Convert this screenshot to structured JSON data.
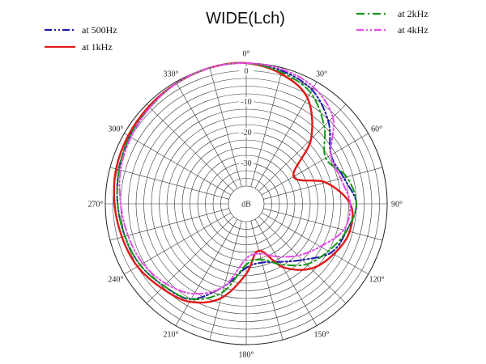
{
  "chart_data": {
    "type": "polar-line",
    "title": "WIDE(Lch)",
    "radial_unit_label": "dB",
    "radial_range": [
      -40,
      0
    ],
    "radial_tick_labels": [
      "0",
      "-10",
      "-20",
      "-30"
    ],
    "angle_tick_labels": [
      "0°",
      "30°",
      "60°",
      "90°",
      "120°",
      "150°",
      "180°",
      "210°",
      "240°",
      "270°",
      "300°",
      "330°"
    ],
    "angles_deg": [
      0,
      15,
      30,
      45,
      60,
      75,
      90,
      105,
      120,
      135,
      150,
      165,
      180,
      195,
      210,
      225,
      240,
      255,
      270,
      285,
      300,
      315,
      330,
      345
    ],
    "series": [
      {
        "name": "at 500Hz",
        "color": "#1a1aa8",
        "dash": "dashdotdot",
        "values": [
          0,
          -1,
          -3,
          -8,
          -14,
          -13,
          -10,
          -12,
          -14,
          -20,
          -24,
          -26,
          -25,
          -18,
          -10,
          -8,
          -6,
          -5,
          -4,
          -3,
          -2,
          -1,
          -0.5,
          0
        ]
      },
      {
        "name": "at 1kHz",
        "color": "#e01919",
        "dash": "solid",
        "values": [
          0,
          -2,
          -6,
          -16,
          -28,
          -19,
          -12,
          -11,
          -13,
          -16,
          -22,
          -30,
          -23,
          -14,
          -9,
          -7,
          -5,
          -4,
          -3,
          -2,
          -1.5,
          -1,
          -0.5,
          0
        ]
      },
      {
        "name": "at 2kHz",
        "color": "#169616",
        "dash": "dashdot",
        "values": [
          0,
          -1.5,
          -4,
          -10,
          -16,
          -12,
          -10,
          -12,
          -15,
          -18,
          -23,
          -27,
          -26,
          -16,
          -10,
          -8,
          -6,
          -5,
          -4,
          -3,
          -2,
          -1.5,
          -0.5,
          0
        ]
      },
      {
        "name": "at 4kHz",
        "color": "#e64be6",
        "dash": "dashdotdot",
        "values": [
          0,
          -0.5,
          -2,
          -6,
          -14,
          -14,
          -12,
          -13,
          -18,
          -22,
          -26,
          -29,
          -28,
          -18,
          -12,
          -9,
          -7,
          -6,
          -5,
          -3.5,
          -2.5,
          -1.5,
          -0.5,
          0
        ]
      }
    ],
    "legend": [
      {
        "label": "at 500Hz",
        "color": "#1a1aa8"
      },
      {
        "label": "at 1kHz",
        "color": "#e01919"
      },
      {
        "label": "at 2kHz",
        "color": "#169616"
      },
      {
        "label": "at 4kHz",
        "color": "#e64be6"
      }
    ]
  }
}
